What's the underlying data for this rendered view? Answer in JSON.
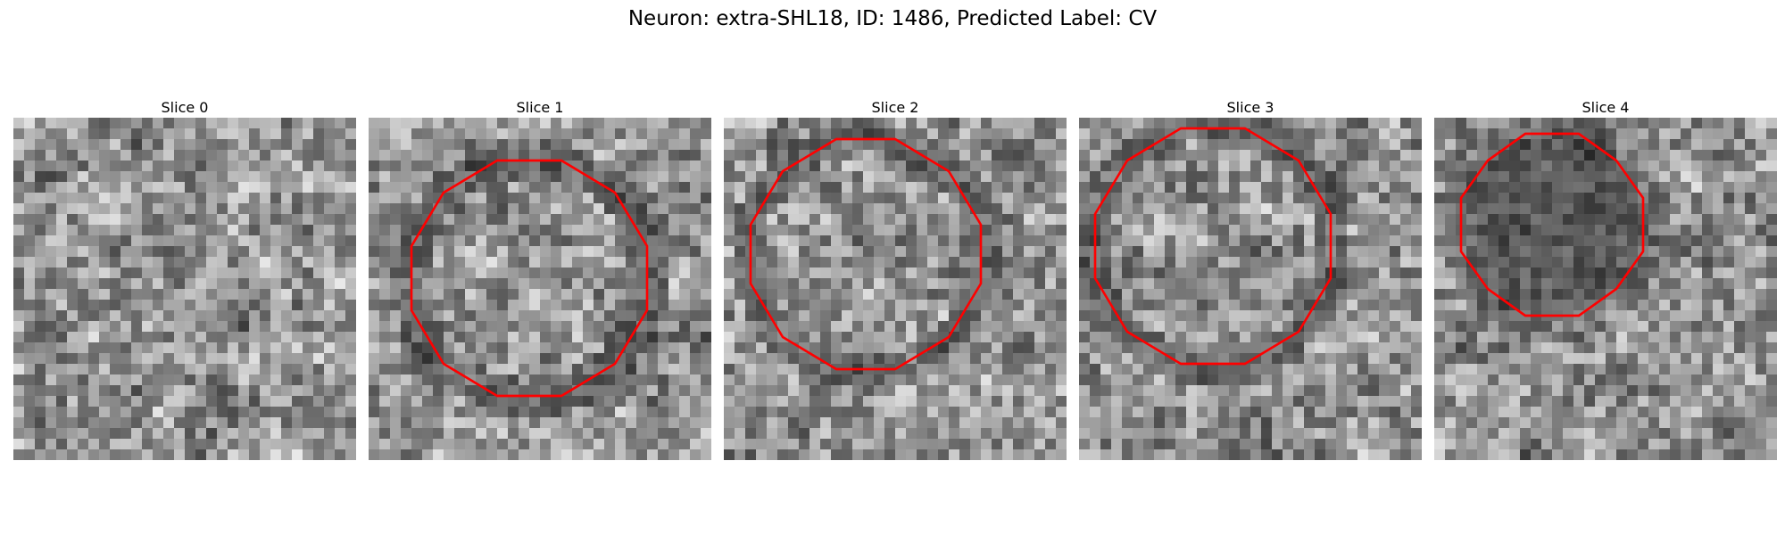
{
  "figure": {
    "title": "Neuron: extra-SHL18, ID: 1486, Predicted Label: CV",
    "contour_color": "#ff0000"
  },
  "panels": [
    {
      "title": "Slice 0",
      "has_contour": false
    },
    {
      "title": "Slice 1",
      "has_contour": true
    },
    {
      "title": "Slice 2",
      "has_contour": true
    },
    {
      "title": "Slice 3",
      "has_contour": true
    },
    {
      "title": "Slice 4",
      "has_contour": true
    }
  ]
}
